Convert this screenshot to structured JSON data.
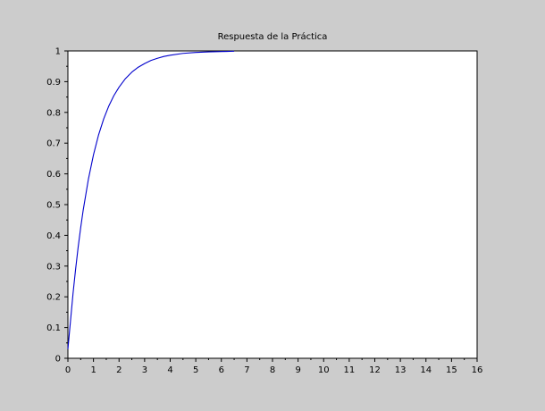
{
  "window": {
    "background": "#cccccc"
  },
  "chart_data": {
    "type": "line",
    "title": "Respuesta de la Práctica",
    "xlabel": "",
    "ylabel": "",
    "xlim": [
      0,
      16
    ],
    "ylim": [
      0,
      1
    ],
    "x_ticks": [
      0,
      1,
      2,
      3,
      4,
      5,
      6,
      7,
      8,
      9,
      10,
      11,
      12,
      13,
      14,
      15,
      16
    ],
    "y_ticks": [
      0,
      0.1,
      0.2,
      0.3,
      0.4,
      0.5,
      0.6,
      0.7,
      0.8,
      0.9,
      1
    ],
    "x_tick_labels": [
      "0",
      "1",
      "2",
      "3",
      "4",
      "5",
      "6",
      "7",
      "8",
      "9",
      "10",
      "11",
      "12",
      "13",
      "14",
      "15",
      "16"
    ],
    "y_tick_labels": [
      "0",
      "0.1",
      "0.2",
      "0.3",
      "0.4",
      "0.5",
      "0.6",
      "0.7",
      "0.8",
      "0.9",
      "1"
    ],
    "grid": false,
    "series": [
      {
        "color": "#0000cc",
        "x": [
          0,
          0.1,
          0.2,
          0.3,
          0.4,
          0.5,
          0.6,
          0.8,
          1.0,
          1.2,
          1.4,
          1.6,
          1.8,
          2.0,
          2.25,
          2.5,
          2.75,
          3.0,
          3.25,
          3.5,
          3.75,
          4.0,
          4.5,
          5.0,
          5.5,
          6.0,
          6.5
        ],
        "y": [
          0.03,
          0.12,
          0.21,
          0.289,
          0.361,
          0.425,
          0.483,
          0.582,
          0.662,
          0.727,
          0.779,
          0.821,
          0.855,
          0.882,
          0.91,
          0.931,
          0.947,
          0.959,
          0.969,
          0.976,
          0.982,
          0.986,
          0.992,
          0.995,
          0.997,
          0.998,
          0.999
        ]
      }
    ]
  }
}
